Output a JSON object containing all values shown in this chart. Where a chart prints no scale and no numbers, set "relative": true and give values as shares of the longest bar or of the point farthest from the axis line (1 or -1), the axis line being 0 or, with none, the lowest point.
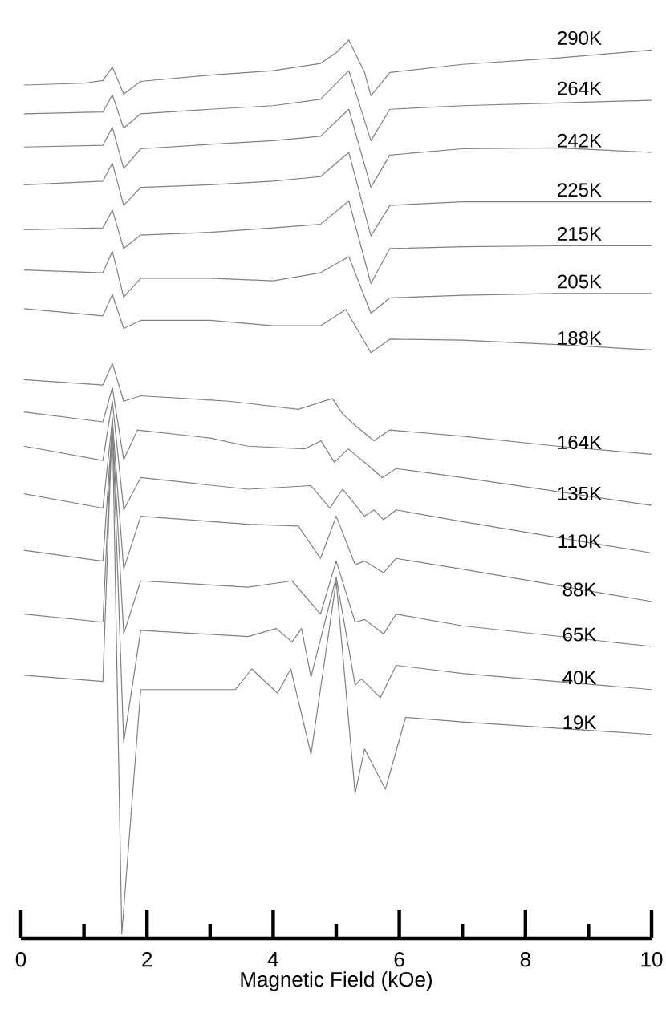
{
  "chart_data": {
    "type": "line",
    "xlabel": "Magnetic Field (kOe)",
    "relative": true,
    "xlim": [
      0,
      10
    ],
    "xticks": [
      0,
      {
        "value": 1,
        "label": null
      },
      2,
      {
        "value": 3,
        "label": null
      },
      4,
      {
        "value": 5,
        "label": null
      },
      6,
      {
        "value": 7,
        "label": null
      },
      8,
      {
        "value": 9,
        "label": null
      },
      10
    ],
    "series": [
      {
        "name": "290K",
        "color": "#808080",
        "x": [
          0.05,
          1.0,
          1.3,
          1.45,
          1.63,
          1.9,
          3.0,
          4.0,
          4.75,
          5.0,
          5.2,
          5.45,
          5.55,
          5.85,
          7.0,
          8.5,
          10.0
        ],
        "values": [
          0.95,
          0.952,
          0.955,
          0.97,
          0.94,
          0.954,
          0.961,
          0.966,
          0.974,
          0.986,
          1.0,
          0.964,
          0.938,
          0.964,
          0.973,
          0.98,
          0.989
        ]
      },
      {
        "name": "264K",
        "color": "#808080",
        "x": [
          0.05,
          1.3,
          1.45,
          1.63,
          1.9,
          3.0,
          4.0,
          4.75,
          5.2,
          5.55,
          5.85,
          7.0,
          8.5,
          10.0
        ],
        "values": [
          0.918,
          0.92,
          0.939,
          0.902,
          0.918,
          0.923,
          0.927,
          0.934,
          0.966,
          0.888,
          0.923,
          0.927,
          0.93,
          0.933
        ]
      },
      {
        "name": "242K",
        "color": "#808080",
        "x": [
          0.05,
          1.3,
          1.45,
          1.63,
          1.9,
          3.0,
          4.0,
          4.75,
          5.2,
          5.55,
          5.85,
          7.0,
          8.5,
          10.0
        ],
        "values": [
          0.881,
          0.883,
          0.903,
          0.857,
          0.879,
          0.884,
          0.888,
          0.893,
          0.923,
          0.836,
          0.872,
          0.879,
          0.88,
          0.875
        ]
      },
      {
        "name": "225K",
        "color": "#808080",
        "x": [
          0.05,
          1.3,
          1.45,
          1.63,
          1.9,
          3.0,
          4.0,
          4.75,
          5.2,
          5.55,
          5.85,
          7.0,
          8.5,
          10.0
        ],
        "values": [
          0.839,
          0.843,
          0.863,
          0.816,
          0.836,
          0.839,
          0.843,
          0.848,
          0.875,
          0.782,
          0.816,
          0.82,
          0.82,
          0.82
        ]
      },
      {
        "name": "215K",
        "color": "#808080",
        "x": [
          0.05,
          1.3,
          1.45,
          1.63,
          1.9,
          3.0,
          4.0,
          4.75,
          5.2,
          5.55,
          5.85,
          7.0,
          8.5,
          10.0
        ],
        "values": [
          0.789,
          0.791,
          0.811,
          0.768,
          0.783,
          0.786,
          0.791,
          0.795,
          0.821,
          0.729,
          0.768,
          0.77,
          0.771,
          0.771
        ]
      },
      {
        "name": "205K",
        "color": "#808080",
        "x": [
          0.05,
          1.3,
          1.45,
          1.63,
          1.9,
          3.0,
          4.0,
          4.75,
          5.2,
          5.55,
          5.85,
          7.0,
          8.5,
          10.0
        ],
        "values": [
          0.744,
          0.741,
          0.765,
          0.714,
          0.735,
          0.735,
          0.732,
          0.741,
          0.759,
          0.696,
          0.713,
          0.716,
          0.718,
          0.718
        ]
      },
      {
        "name": "188K",
        "color": "#808080",
        "x": [
          0.05,
          1.3,
          1.45,
          1.63,
          1.9,
          3.0,
          4.0,
          4.75,
          5.15,
          5.55,
          5.85,
          7.0,
          8.5,
          10.0
        ],
        "values": [
          0.701,
          0.693,
          0.717,
          0.679,
          0.688,
          0.688,
          0.682,
          0.682,
          0.7,
          0.652,
          0.667,
          0.666,
          0.661,
          0.655
        ]
      },
      {
        "name": "164K",
        "color": "#808080",
        "x": [
          0.05,
          1.3,
          1.45,
          1.63,
          1.9,
          3.3,
          4.4,
          4.94,
          5.1,
          5.3,
          5.6,
          5.85,
          7.0,
          8.5,
          10.0
        ],
        "values": [
          0.622,
          0.616,
          0.64,
          0.598,
          0.604,
          0.598,
          0.589,
          0.601,
          0.584,
          0.571,
          0.554,
          0.566,
          0.559,
          0.548,
          0.539
        ]
      },
      {
        "name": "135K",
        "color": "#808080",
        "x": [
          0.05,
          1.3,
          1.45,
          1.63,
          1.85,
          3.0,
          3.6,
          4.5,
          4.76,
          4.97,
          5.19,
          5.5,
          5.73,
          5.95,
          7.0,
          10.0
        ],
        "values": [
          0.586,
          0.575,
          0.613,
          0.533,
          0.566,
          0.557,
          0.548,
          0.545,
          0.554,
          0.53,
          0.545,
          0.527,
          0.513,
          0.523,
          0.513,
          0.482
        ]
      },
      {
        "name": "110K",
        "color": "#808080",
        "x": [
          0.05,
          1.3,
          1.45,
          1.63,
          1.9,
          3.6,
          4.6,
          4.9,
          5.1,
          5.45,
          5.6,
          5.75,
          5.95,
          7.0,
          10.0
        ],
        "values": [
          0.548,
          0.532,
          0.598,
          0.477,
          0.513,
          0.5,
          0.504,
          0.479,
          0.5,
          0.47,
          0.477,
          0.466,
          0.477,
          0.464,
          0.429
        ]
      },
      {
        "name": "88K",
        "color": "#808080",
        "x": [
          0.05,
          1.3,
          1.45,
          1.63,
          1.9,
          3.6,
          4.4,
          4.75,
          5.0,
          5.3,
          5.45,
          5.75,
          5.95,
          7.0,
          10.0
        ],
        "values": [
          0.495,
          0.479,
          0.577,
          0.411,
          0.47,
          0.461,
          0.459,
          0.423,
          0.47,
          0.416,
          0.42,
          0.407,
          0.423,
          0.411,
          0.375
        ]
      },
      {
        "name": "65K",
        "color": "#808080",
        "x": [
          0.05,
          1.3,
          1.45,
          1.63,
          1.9,
          3.6,
          4.3,
          4.75,
          5.0,
          5.3,
          5.45,
          5.75,
          5.95,
          7.0,
          10.0
        ],
        "values": [
          0.432,
          0.42,
          0.571,
          0.339,
          0.398,
          0.391,
          0.398,
          0.361,
          0.42,
          0.352,
          0.355,
          0.339,
          0.361,
          0.348,
          0.325
        ]
      },
      {
        "name": "40K",
        "color": "#808080",
        "x": [
          0.05,
          1.3,
          1.45,
          1.63,
          1.9,
          3.6,
          4.05,
          4.3,
          4.45,
          4.6,
          5.0,
          5.3,
          5.4,
          5.7,
          5.95,
          7.0,
          10.0
        ],
        "values": [
          0.361,
          0.352,
          0.575,
          0.218,
          0.343,
          0.336,
          0.345,
          0.33,
          0.345,
          0.291,
          0.402,
          0.282,
          0.289,
          0.268,
          0.304,
          0.295,
          0.277
        ]
      },
      {
        "name": "19K",
        "color": "#808080",
        "x": [
          0.05,
          1.3,
          1.45,
          1.6,
          1.9,
          3.4,
          3.66,
          4.07,
          4.28,
          4.6,
          5.0,
          5.3,
          5.45,
          5.78,
          6.1,
          7.0,
          10.0
        ],
        "values": [
          0.293,
          0.286,
          0.58,
          0.005,
          0.277,
          0.277,
          0.3,
          0.273,
          0.3,
          0.205,
          0.398,
          0.161,
          0.211,
          0.166,
          0.246,
          0.241,
          0.227
        ]
      }
    ]
  }
}
